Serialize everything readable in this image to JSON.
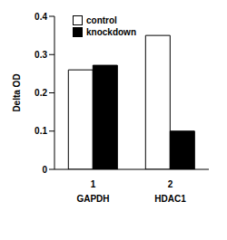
{
  "chart_data": {
    "type": "bar",
    "categories": [
      "1\nGAPDH",
      "2\nHDAC1"
    ],
    "series": [
      {
        "name": "control",
        "color": "#ffffff",
        "values": [
          0.26,
          0.35
        ]
      },
      {
        "name": "knockdown",
        "color": "#000000",
        "values": [
          0.272,
          0.1
        ]
      }
    ],
    "y_label": "Delta OD",
    "ylim": [
      0,
      0.4
    ],
    "yticks": [
      0,
      0.1,
      0.2,
      0.3,
      0.4
    ],
    "grid": false,
    "legend": "upper left"
  }
}
